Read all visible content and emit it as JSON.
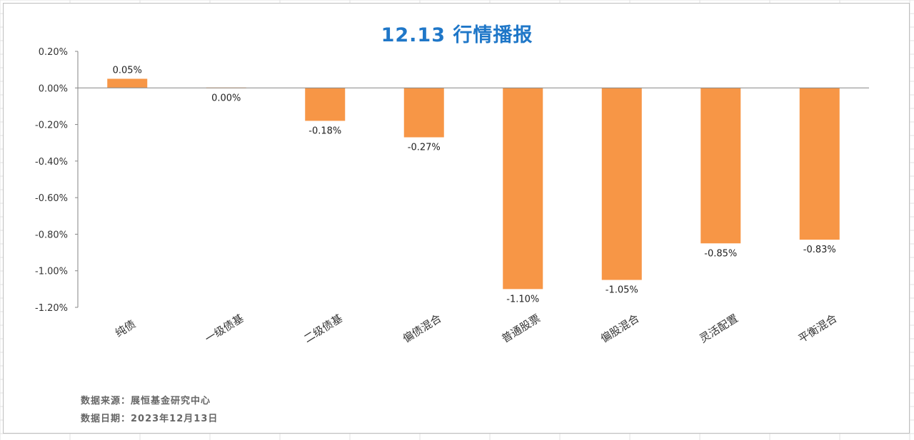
{
  "chart_data": {
    "type": "bar",
    "title": "12.13 行情播报",
    "categories": [
      "纯债",
      "一级债基",
      "二级债基",
      "偏债混合",
      "普通股票",
      "偏股混合",
      "灵活配置",
      "平衡混合"
    ],
    "values": [
      0.05,
      0.0,
      -0.18,
      -0.27,
      -1.1,
      -1.05,
      -0.85,
      -0.83
    ],
    "data_labels": [
      "0.05%",
      "0.00%",
      "-0.18%",
      "-0.27%",
      "-1.10%",
      "-1.05%",
      "-0.85%",
      "-0.83%"
    ],
    "y_ticks": [
      0.2,
      0.0,
      -0.2,
      -0.4,
      -0.6,
      -0.8,
      -1.0,
      -1.2
    ],
    "y_tick_labels": [
      "0.20%",
      "0.00%",
      "-0.20%",
      "-0.40%",
      "-0.60%",
      "-0.80%",
      "-1.00%",
      "-1.20%"
    ],
    "ylim": [
      -1.2,
      0.2
    ],
    "grid": false,
    "legend": "none",
    "bar_color": "#f79646",
    "xlabel": "",
    "ylabel": ""
  },
  "title_color": "#1f77c8",
  "footnotes": {
    "source": "数据来源：展恒基金研究中心",
    "date": "数据日期：2023年12月13日"
  }
}
